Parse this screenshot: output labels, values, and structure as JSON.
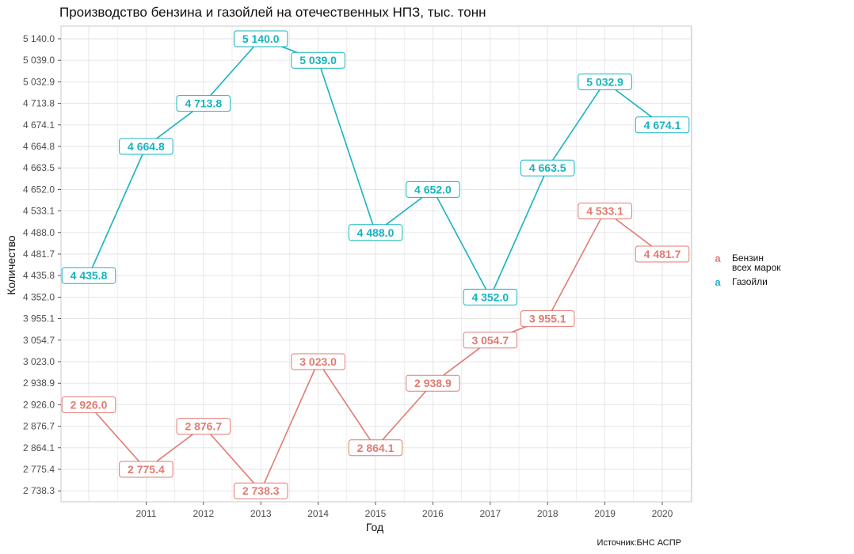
{
  "chart_data": {
    "type": "line",
    "title": "Производство бензина и газойлей на отечественных НПЗ, тыс. тонн",
    "xlabel": "Год",
    "ylabel": "Количество",
    "source": "Источник:БНС АСПР",
    "x_ticks": [
      "2011",
      "2012",
      "2013",
      "2014",
      "2015",
      "2016",
      "2017",
      "2018",
      "2019",
      "2020"
    ],
    "y_ticks": [
      "5 140.0",
      "5 039.0",
      "5 032.9",
      "4 713.8",
      "4 674.1",
      "4 664.8",
      "4 663.5",
      "4 652.0",
      "4 533.1",
      "4 488.0",
      "4 481.7",
      "4 435.8",
      "4 352.0",
      "3 955.1",
      "3 054.7",
      "3 023.0",
      "2 938.9",
      "2 926.0",
      "2 876.7",
      "2 864.1",
      "2 775.4",
      "2 738.3"
    ],
    "x": [
      2010,
      2011,
      2012,
      2013,
      2014,
      2015,
      2016,
      2017,
      2018,
      2019,
      2020
    ],
    "legend_placement": "right",
    "grid": true,
    "series": [
      {
        "name": "Бензин всех марок",
        "legend_lines": [
          "Бензин",
          "всех марок"
        ],
        "color": "#e07b72",
        "values": [
          2926.0,
          2775.4,
          2876.7,
          2738.3,
          3023.0,
          2864.1,
          2938.9,
          3054.7,
          3955.1,
          4533.1,
          4481.7
        ],
        "labels": [
          "2 926.0",
          "2 775.4",
          "2 876.7",
          "2 738.3",
          "3 023.0",
          "2 864.1",
          "2 938.9",
          "3 054.7",
          "3 955.1",
          "4 533.1",
          "4 481.7"
        ]
      },
      {
        "name": "Газойли",
        "legend_lines": [
          "Газойли"
        ],
        "color": "#17b3bf",
        "values": [
          4435.8,
          4664.8,
          4713.8,
          5140.0,
          5039.0,
          4488.0,
          4652.0,
          4352.0,
          4663.5,
          5032.9,
          4674.1
        ],
        "labels": [
          "4 435.8",
          "4 664.8",
          "4 713.8",
          "5 140.0",
          "5 039.0",
          "4 488.0",
          "4 652.0",
          "4 352.0",
          "4 663.5",
          "5 032.9",
          "4 674.1"
        ]
      }
    ],
    "legend_glyph": "a"
  }
}
